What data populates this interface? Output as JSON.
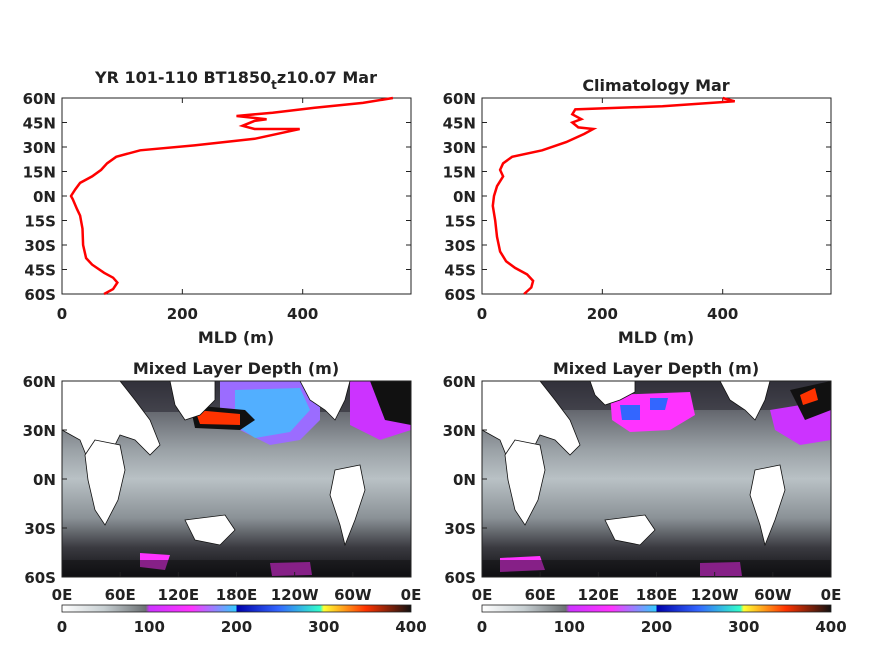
{
  "chart_data": [
    {
      "type": "line",
      "title": "YR 101-110 BT1850",
      "title_sub": "t",
      "title_tail": "z10.07 Mar",
      "xlabel": "MLD (m)",
      "ylabel": "",
      "xlim": [
        0,
        580
      ],
      "ylim": [
        -60,
        60
      ],
      "xticks": [
        0,
        200,
        400
      ],
      "yticks": [
        "60N",
        "45N",
        "30N",
        "15N",
        "0N",
        "15S",
        "30S",
        "45S",
        "60S"
      ],
      "series": [
        {
          "color": "#ff0000",
          "points": [
            [
              70,
              -60
            ],
            [
              85,
              -57
            ],
            [
              92,
              -53
            ],
            [
              85,
              -50
            ],
            [
              70,
              -47
            ],
            [
              50,
              -42
            ],
            [
              40,
              -38
            ],
            [
              35,
              -30
            ],
            [
              34,
              -20
            ],
            [
              30,
              -12
            ],
            [
              25,
              -8
            ],
            [
              18,
              -2
            ],
            [
              15,
              0
            ],
            [
              22,
              4
            ],
            [
              30,
              8
            ],
            [
              50,
              12
            ],
            [
              65,
              16
            ],
            [
              75,
              20
            ],
            [
              90,
              24
            ],
            [
              130,
              28
            ],
            [
              220,
              31
            ],
            [
              320,
              35
            ],
            [
              370,
              39
            ],
            [
              395,
              41
            ],
            [
              320,
              41
            ],
            [
              300,
              43
            ],
            [
              320,
              46
            ],
            [
              340,
              47
            ],
            [
              290,
              49
            ],
            [
              350,
              51
            ],
            [
              420,
              54
            ],
            [
              500,
              57
            ],
            [
              550,
              60
            ]
          ]
        }
      ]
    },
    {
      "type": "line",
      "title": "Climatology Mar",
      "xlabel": "MLD (m)",
      "ylabel": "",
      "xlim": [
        0,
        580
      ],
      "ylim": [
        -60,
        60
      ],
      "xticks": [
        0,
        200,
        400
      ],
      "yticks": [
        "60N",
        "45N",
        "30N",
        "15N",
        "0N",
        "15S",
        "30S",
        "45S",
        "60S"
      ],
      "series": [
        {
          "color": "#ff0000",
          "points": [
            [
              70,
              -60
            ],
            [
              82,
              -56
            ],
            [
              85,
              -52
            ],
            [
              75,
              -48
            ],
            [
              55,
              -44
            ],
            [
              40,
              -40
            ],
            [
              30,
              -34
            ],
            [
              25,
              -25
            ],
            [
              22,
              -15
            ],
            [
              18,
              -6
            ],
            [
              20,
              0
            ],
            [
              25,
              6
            ],
            [
              35,
              12
            ],
            [
              30,
              16
            ],
            [
              35,
              20
            ],
            [
              50,
              24
            ],
            [
              100,
              28
            ],
            [
              140,
              33
            ],
            [
              170,
              38
            ],
            [
              185,
              41
            ],
            [
              160,
              42
            ],
            [
              150,
              45
            ],
            [
              165,
              47
            ],
            [
              150,
              50
            ],
            [
              155,
              53
            ],
            [
              300,
              55
            ],
            [
              420,
              58
            ],
            [
              400,
              60
            ]
          ]
        }
      ]
    },
    {
      "type": "heatmap",
      "title": "Mixed Layer Depth (m)",
      "xticks": [
        "0E",
        "60E",
        "120E",
        "180E",
        "120W",
        "60W",
        "0E"
      ],
      "yticks": [
        "60N",
        "30N",
        "0N",
        "30S",
        "60S"
      ],
      "colorbar_ticks": [
        "0",
        "100",
        "200",
        "300",
        "400"
      ]
    },
    {
      "type": "heatmap",
      "title": "Mixed Layer Depth (m)",
      "xticks": [
        "0E",
        "60E",
        "120E",
        "180E",
        "120W",
        "60W",
        "0E"
      ],
      "yticks": [
        "60N",
        "30N",
        "0N",
        "30S",
        "60S"
      ],
      "colorbar_ticks": [
        "0",
        "100",
        "200",
        "300",
        "400"
      ]
    }
  ]
}
